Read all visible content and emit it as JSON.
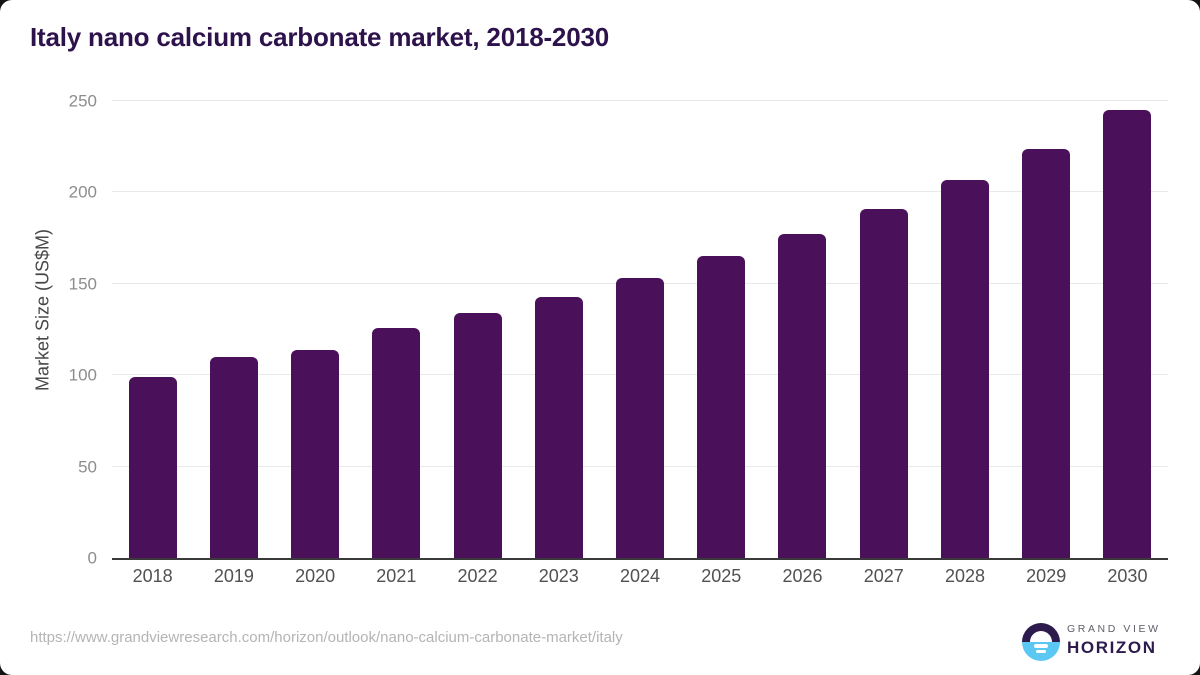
{
  "chart_data": {
    "type": "bar",
    "title": "Italy nano calcium carbonate market, 2018-2030",
    "categories": [
      "2018",
      "2019",
      "2020",
      "2021",
      "2022",
      "2023",
      "2024",
      "2025",
      "2026",
      "2027",
      "2028",
      "2029",
      "2030"
    ],
    "values": [
      99,
      110,
      114,
      126,
      134,
      143,
      153,
      165,
      177,
      191,
      207,
      224,
      245
    ],
    "xlabel": "",
    "ylabel": "Market Size (US$M)",
    "ylim": [
      0,
      250
    ],
    "yticks": [
      0,
      50,
      100,
      150,
      200,
      250
    ],
    "grid": true,
    "legend_position": "none",
    "bar_color": "#4a115a"
  },
  "footer": {
    "source_url": "https://www.grandviewresearch.com/horizon/outlook/nano-calcium-carbonate-market/italy",
    "brand": {
      "line1": "GRAND VIEW",
      "line2": "HORIZON"
    }
  },
  "colors": {
    "title_text": "#2e124c",
    "bar": "#4a115a",
    "y_tick_label": "#8d8d8d",
    "x_tick_label": "#515151",
    "axis_title": "#474747",
    "gridline": "#e9e9e9",
    "axis_line": "#3a3a3a",
    "source_text": "#b4b4b4",
    "logo_dark": "#2d1b4e",
    "logo_blue": "#5bc7f3",
    "brand_gray": "#5e5e68",
    "card_background": "#ffffff"
  }
}
